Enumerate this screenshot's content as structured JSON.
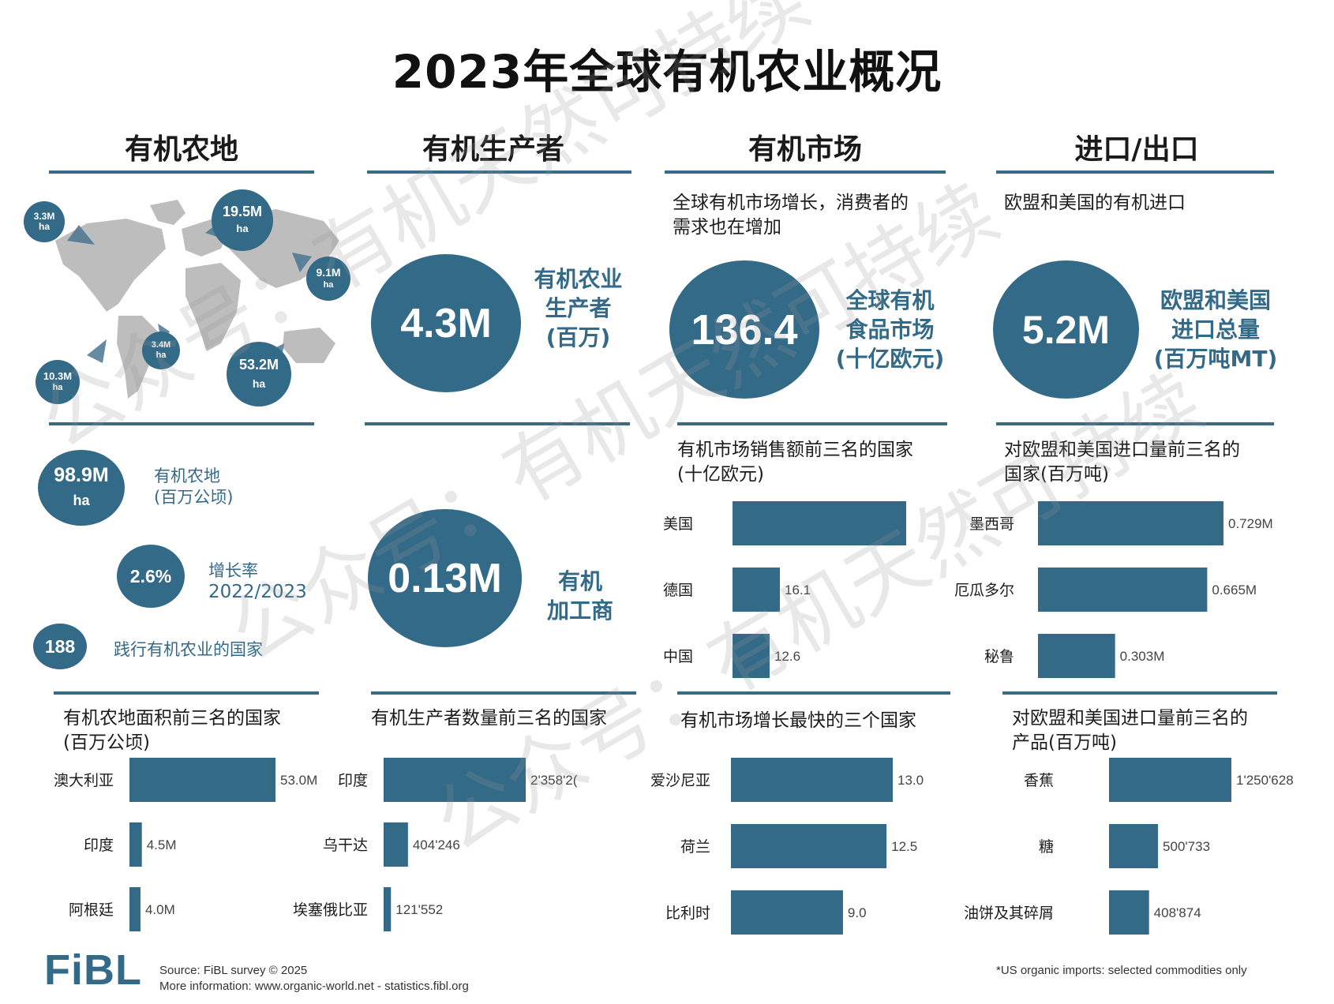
{
  "title": "2023年全球有机农业概况",
  "columns": {
    "land": {
      "heading": "有机农地",
      "map_bubbles": [
        {
          "value": "3.3M",
          "unit": "ha"
        },
        {
          "value": "19.5M",
          "unit": "ha"
        },
        {
          "value": "9.1M",
          "unit": "ha"
        },
        {
          "value": "3.4M",
          "unit": "ha"
        },
        {
          "value": "10.3M",
          "unit": "ha"
        },
        {
          "value": "53.2M",
          "unit": "ha"
        }
      ],
      "stats": [
        {
          "value": "98.9M",
          "unit": "ha",
          "label_lines": [
            "有机农地",
            "(百万公顷)"
          ]
        },
        {
          "value": "2.6%",
          "unit": "",
          "label_lines": [
            "增长率",
            "2022/2023"
          ]
        },
        {
          "value": "188",
          "unit": "",
          "label_lines": [
            "践行有机农业的国家"
          ]
        }
      ],
      "top_title_lines": [
        "有机农地面积前三名的国家",
        "(百万公顷)"
      ]
    },
    "producers": {
      "heading": "有机生产者",
      "big1": {
        "value": "4.3M",
        "label_lines": [
          "有机农业",
          "生产者",
          "(百万)"
        ]
      },
      "big2": {
        "value": "0.13M",
        "label_lines": [
          "有机",
          "加工商"
        ]
      },
      "top_title_lines": [
        "有机生产者数量前三名的国家"
      ]
    },
    "market": {
      "heading": "有机市场",
      "intro_lines": [
        "全球有机市场增长，消费者的",
        "需求也在增加"
      ],
      "big": {
        "value": "136.4",
        "label_lines": [
          "全球有机",
          "食品市场",
          "(十亿欧元)"
        ]
      },
      "sales_title_lines": [
        "有机市场销售额前三名的国家",
        "(十亿欧元)"
      ],
      "growth_title_lines": [
        "有机市场增长最快的三个国家"
      ]
    },
    "trade": {
      "heading": "进口/出口",
      "intro_lines": [
        "欧盟和美国的有机进口"
      ],
      "big": {
        "value": "5.2M",
        "label_lines": [
          "欧盟和美国",
          "进口总量",
          "(百万吨MT)"
        ]
      },
      "countries_title_lines": [
        "对欧盟和美国进口量前三名的",
        "国家(百万吨)"
      ],
      "products_title_lines": [
        "对欧盟和美国进口量前三名的",
        "产品(百万吨)"
      ]
    }
  },
  "chart_data": [
    {
      "type": "bar",
      "id": "land_top3",
      "orientation": "horizontal",
      "categories": [
        "澳大利亚",
        "印度",
        "阿根廷"
      ],
      "values": [
        53.0,
        4.5,
        4.0
      ],
      "value_labels": [
        "53.0M",
        "4.5M",
        "4.0M"
      ]
    },
    {
      "type": "bar",
      "id": "producers_top3",
      "orientation": "horizontal",
      "categories": [
        "印度",
        "乌干达",
        "埃塞俄比亚"
      ],
      "values": [
        2358200,
        404246,
        121552
      ],
      "value_labels": [
        "2'358'2(",
        "404'246",
        "121'552"
      ]
    },
    {
      "type": "bar",
      "id": "market_sales_top3",
      "orientation": "horizontal",
      "categories": [
        "美国",
        "德国",
        "中国"
      ],
      "values": [
        59.0,
        16.1,
        12.6
      ],
      "value_labels": [
        "",
        "16.1",
        "12.6"
      ]
    },
    {
      "type": "bar",
      "id": "market_growth_top3",
      "orientation": "horizontal",
      "categories": [
        "爱沙尼亚",
        "荷兰",
        "比利时"
      ],
      "values": [
        13.0,
        12.5,
        9.0
      ],
      "value_labels": [
        "13.0",
        "12.5",
        "9.0"
      ]
    },
    {
      "type": "bar",
      "id": "import_countries_top3",
      "orientation": "horizontal",
      "categories": [
        "墨西哥",
        "厄瓜多尔",
        "秘鲁"
      ],
      "values": [
        0.729,
        0.665,
        0.303
      ],
      "value_labels": [
        "0.729M",
        "0.665M",
        "0.303M"
      ]
    },
    {
      "type": "bar",
      "id": "import_products_top3",
      "orientation": "horizontal",
      "categories": [
        "香蕉",
        "糖",
        "油饼及其碎屑"
      ],
      "values": [
        1250628,
        500733,
        408874
      ],
      "value_labels": [
        "1'250'628",
        "500'733",
        "408'874"
      ]
    }
  ],
  "footer": {
    "logo": "FiBL",
    "source_lines": [
      "Source: FiBL survey © 2025",
      "More information: www.organic-world.net - statistics.fibl.org"
    ],
    "note": "*US organic imports: selected commodities only"
  },
  "watermark_text": "公众号：有机天然可持续",
  "colors": {
    "primary": "#336a87",
    "rule": "#3b6a86",
    "map": "#bdbdbd"
  }
}
